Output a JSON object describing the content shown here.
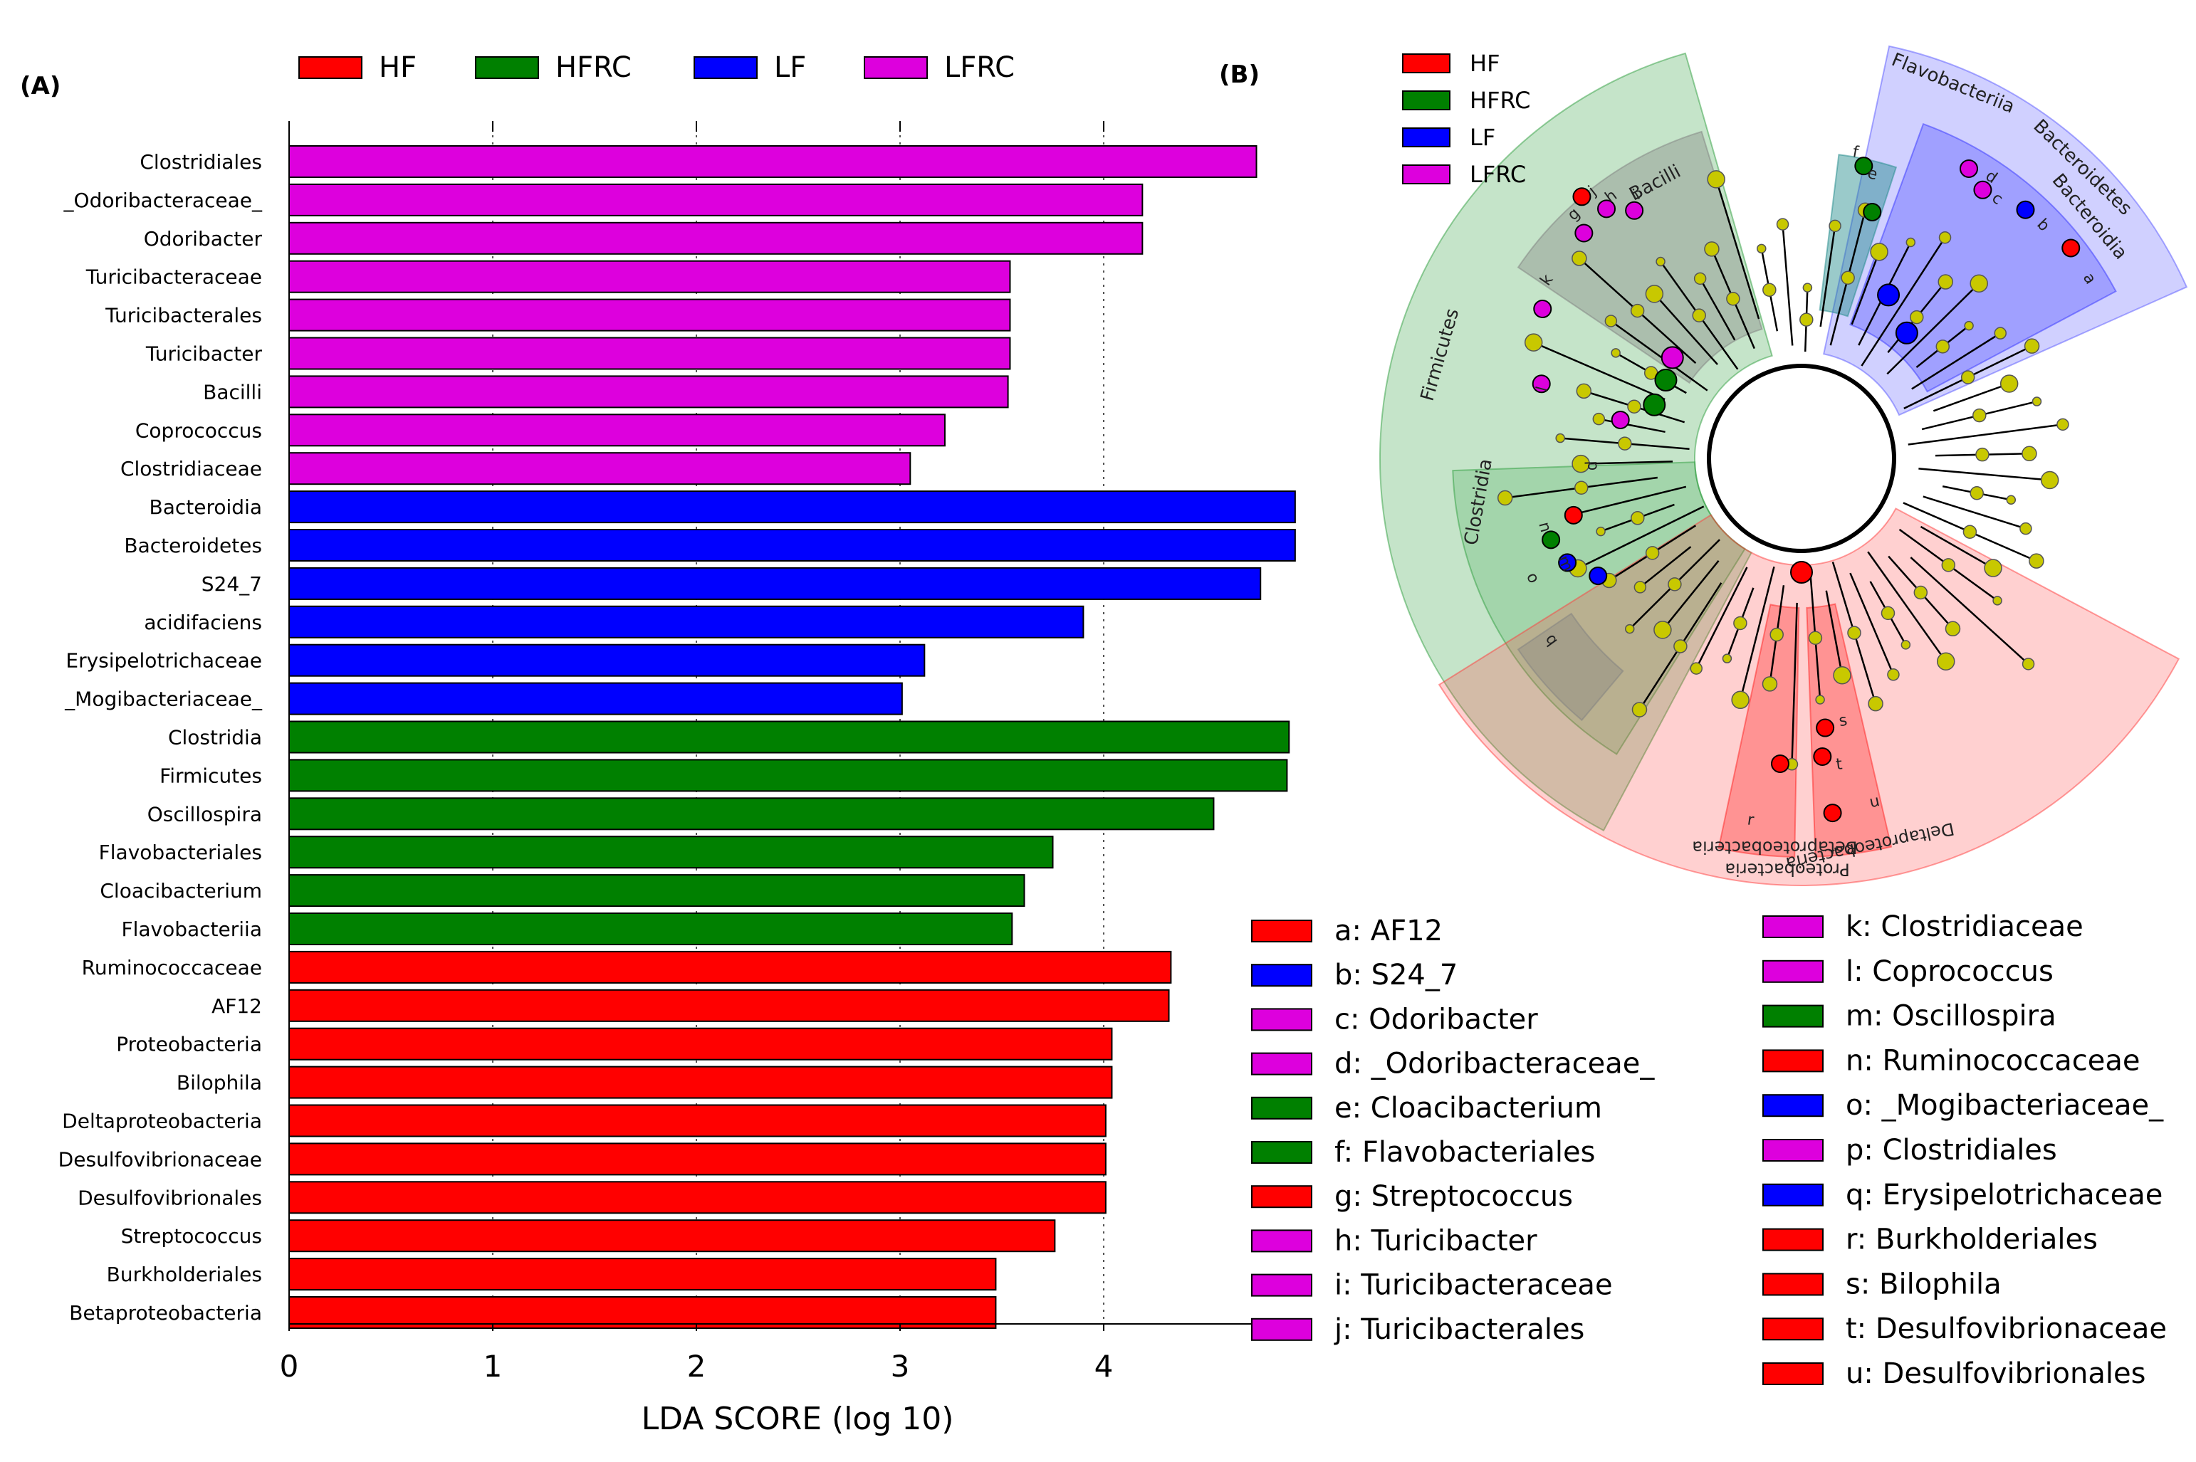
{
  "panel_labels": {
    "a": "(A)",
    "b": "(B)"
  },
  "legend_top": [
    {
      "name": "HF",
      "color": "#ff0000"
    },
    {
      "name": "HFRC",
      "color": "#008000"
    },
    {
      "name": "LF",
      "color": "#0000ff"
    },
    {
      "name": "LFRC",
      "color": "#dd00dd"
    }
  ],
  "chart_data": [
    {
      "type": "bar",
      "orientation": "horizontal",
      "xlabel": "LDA SCORE (log 10)",
      "xlim": [
        0,
        4.8
      ],
      "xticks": [
        "0",
        "1",
        "2",
        "3",
        "4"
      ],
      "grid": "vertical dotted lines at ticks",
      "legend_placement": "top",
      "categories": [
        "Clostridiales",
        "_Odoribacteraceae_",
        "Odoribacter",
        "Turicibacteraceae",
        "Turicibacterales",
        "Turicibacter",
        "Bacilli",
        "Coprococcus",
        "Clostridiaceae",
        "Bacteroidia",
        "Bacteroidetes",
        "S24_7",
        "acidifaciens",
        "Erysipelotrichaceae",
        "_Mogibacteriaceae_",
        "Clostridia",
        "Firmicutes",
        "Oscillospira",
        "Flavobacteriales",
        "Cloacibacterium",
        "Flavobacteriia",
        "Ruminococcaceae",
        "AF12",
        "Proteobacteria",
        "Bilophila",
        "Deltaproteobacteria",
        "Desulfovibrionaceae",
        "Desulfovibrionales",
        "Streptococcus",
        "Burkholderiales",
        "Betaproteobacteria"
      ],
      "values": [
        4.75,
        4.19,
        4.19,
        3.54,
        3.54,
        3.54,
        3.53,
        3.22,
        3.05,
        4.94,
        4.94,
        4.77,
        3.9,
        3.12,
        3.01,
        4.91,
        4.9,
        4.54,
        3.75,
        3.61,
        3.55,
        4.33,
        4.32,
        4.04,
        4.04,
        4.01,
        4.01,
        4.01,
        3.76,
        3.47,
        3.47
      ],
      "groups": [
        "LFRC",
        "LFRC",
        "LFRC",
        "LFRC",
        "LFRC",
        "LFRC",
        "LFRC",
        "LFRC",
        "LFRC",
        "LF",
        "LF",
        "LF",
        "LF",
        "LF",
        "LF",
        "HFRC",
        "HFRC",
        "HFRC",
        "HFRC",
        "HFRC",
        "HFRC",
        "HF",
        "HF",
        "HF",
        "HF",
        "HF",
        "HF",
        "HF",
        "HF",
        "HF",
        "HF"
      ]
    },
    {
      "type": "cladogram",
      "legend": [
        {
          "name": "HF",
          "color": "#ff0000"
        },
        {
          "name": "HFRC",
          "color": "#008000"
        },
        {
          "name": "LF",
          "color": "#0000ff"
        },
        {
          "name": "LFRC",
          "color": "#dd00dd"
        }
      ],
      "sector_labels": [
        "Bacilli",
        "Firmicutes",
        "Clostridia",
        "Flavobacteriia",
        "Bacteroidetes",
        "Bacteroidia",
        "Proteobacteria",
        "Betaproteobacteria",
        "Deltaproteobacteria"
      ],
      "node_letters": [
        "a",
        "b",
        "c",
        "d",
        "e",
        "f",
        "g",
        "h",
        "i",
        "j",
        "k",
        "l",
        "m",
        "n",
        "o",
        "p",
        "q",
        "r",
        "s",
        "t",
        "u"
      ],
      "key": [
        {
          "label": "a: AF12",
          "color": "#ff0000"
        },
        {
          "label": "b: S24_7",
          "color": "#0000ff"
        },
        {
          "label": "c: Odoribacter",
          "color": "#dd00dd"
        },
        {
          "label": "d: _Odoribacteraceae_",
          "color": "#dd00dd"
        },
        {
          "label": "e: Cloacibacterium",
          "color": "#008000"
        },
        {
          "label": "f: Flavobacteriales",
          "color": "#008000"
        },
        {
          "label": "g: Streptococcus",
          "color": "#ff0000"
        },
        {
          "label": "h: Turicibacter",
          "color": "#dd00dd"
        },
        {
          "label": "i: Turicibacteraceae",
          "color": "#dd00dd"
        },
        {
          "label": "j: Turicibacterales",
          "color": "#dd00dd"
        },
        {
          "label": "k: Clostridiaceae",
          "color": "#dd00dd"
        },
        {
          "label": "l: Coprococcus",
          "color": "#dd00dd"
        },
        {
          "label": "m: Oscillospira",
          "color": "#008000"
        },
        {
          "label": "n: Ruminococcaceae",
          "color": "#ff0000"
        },
        {
          "label": "o: _Mogibacteriaceae_",
          "color": "#0000ff"
        },
        {
          "label": "p: Clostridiales",
          "color": "#dd00dd"
        },
        {
          "label": "q: Erysipelotrichaceae",
          "color": "#0000ff"
        },
        {
          "label": "r: Burkholderiales",
          "color": "#ff0000"
        },
        {
          "label": "s: Bilophila",
          "color": "#ff0000"
        },
        {
          "label": "t: Desulfovibrionaceae",
          "color": "#ff0000"
        },
        {
          "label": "u: Desulfovibrionales",
          "color": "#ff0000"
        }
      ]
    }
  ]
}
